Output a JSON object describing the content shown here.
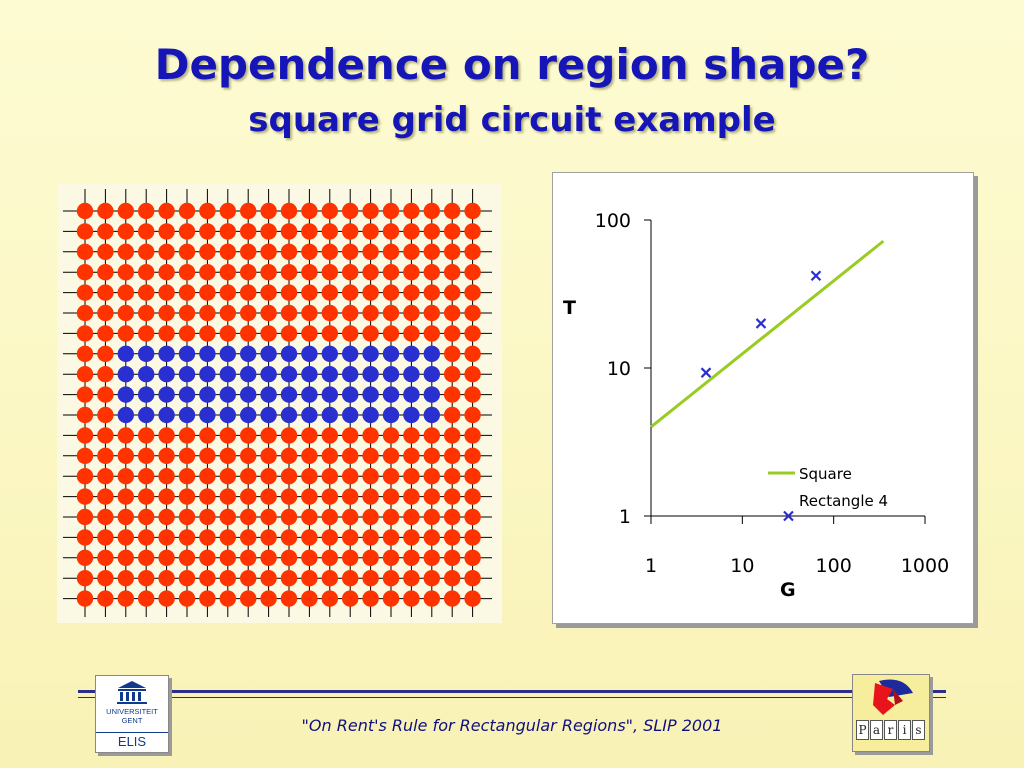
{
  "slide": {
    "title": "Dependence on region shape?",
    "subtitle": "square grid circuit example",
    "footer": "\"On Rent's Rule for Rectangular Regions\", SLIP 2001"
  },
  "grid_figure": {
    "rows": 20,
    "cols": 20,
    "highlight": {
      "row_start": 7,
      "row_count": 4,
      "col_start": 2,
      "col_count": 16
    },
    "colors": {
      "cell": "#ff3300",
      "highlight": "#2a2fd0",
      "wire": "#000000"
    }
  },
  "chart_data": {
    "type": "scatter",
    "log_x": true,
    "log_y": true,
    "xlim": [
      1,
      1000
    ],
    "ylim": [
      1,
      100
    ],
    "x_ticks": [
      "1",
      "10",
      "100",
      "1000"
    ],
    "y_ticks": [
      "1",
      "10",
      "100"
    ],
    "xlabel": "G",
    "ylabel": "T",
    "series": [
      {
        "name": "Square",
        "kind": "line",
        "color": "#99cc22",
        "x": [
          1,
          350
        ],
        "y": [
          4,
          72
        ]
      },
      {
        "name": "Rectangle 4",
        "kind": "markers",
        "color": "#2a2fd0",
        "x": [
          4,
          16,
          64,
          32
        ],
        "y": [
          9.3,
          20,
          42,
          1
        ]
      }
    ],
    "legend_position": "bottom-right"
  },
  "logos": {
    "left": {
      "line1": "UNIVERSITEIT",
      "line2": "GENT",
      "line3": "ELIS"
    },
    "right": {
      "letters": [
        "P",
        "a",
        "r",
        "i",
        "s"
      ]
    }
  }
}
